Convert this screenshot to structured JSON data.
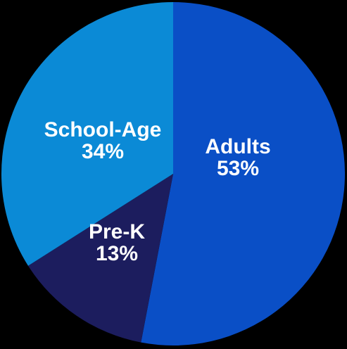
{
  "chart_data": {
    "type": "pie",
    "categories": [
      "Adults",
      "Pre-K",
      "School-Age"
    ],
    "values": [
      53,
      13,
      34
    ],
    "value_labels": [
      "53%",
      "13%",
      "34%"
    ],
    "colors": [
      "#0a4fc6",
      "#1c1d5e",
      "#0b8ad6"
    ]
  }
}
